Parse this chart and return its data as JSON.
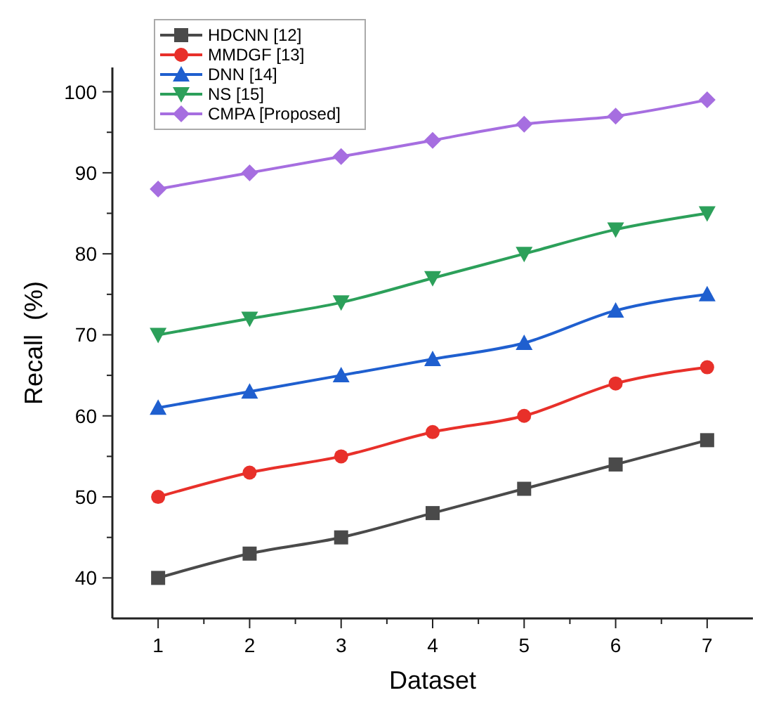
{
  "chart_data": {
    "type": "line",
    "xlabel": "Dataset",
    "ylabel": "Recall  (%)",
    "x": [
      1,
      2,
      3,
      4,
      5,
      6,
      7
    ],
    "series": [
      {
        "name": "HDCNN [12]",
        "color": "#4a4a4a",
        "marker": "square",
        "values": [
          40,
          43,
          45,
          48,
          51,
          54,
          57
        ]
      },
      {
        "name": "MMDGF [13]",
        "color": "#e8302a",
        "marker": "circle",
        "values": [
          50,
          53,
          55,
          58,
          60,
          64,
          66
        ]
      },
      {
        "name": "DNN [14]",
        "color": "#1f5fcf",
        "marker": "triangle",
        "values": [
          61,
          63,
          65,
          67,
          69,
          73,
          75
        ]
      },
      {
        "name": "NS [15]",
        "color": "#2ca05a",
        "marker": "triangle-down",
        "values": [
          70,
          72,
          74,
          77,
          80,
          83,
          85
        ]
      },
      {
        "name": "CMPA [Proposed]",
        "color": "#a66ee0",
        "marker": "diamond",
        "values": [
          88,
          90,
          92,
          94,
          96,
          97,
          99
        ]
      }
    ],
    "xlim": [
      0.5,
      7.5
    ],
    "xticks": [
      1,
      {
        "value": 1.5,
        "label": null
      },
      2,
      {
        "value": 2.5,
        "label": null
      },
      3,
      {
        "value": 3.5,
        "label": null
      },
      4,
      {
        "value": 4.5,
        "label": null
      },
      5,
      {
        "value": 5.5,
        "label": null
      },
      6,
      {
        "value": 6.5,
        "label": null
      },
      7
    ],
    "ylim": [
      35,
      103
    ],
    "yticks": [
      40,
      {
        "value": 45,
        "label": null
      },
      50,
      {
        "value": 55,
        "label": null
      },
      60,
      {
        "value": 65,
        "label": null
      },
      70,
      {
        "value": 75,
        "label": null
      },
      80,
      {
        "value": 85,
        "label": null
      },
      90,
      {
        "value": 95,
        "label": null
      },
      100
    ],
    "grid": false,
    "legend": "top left",
    "line_style": "solid"
  }
}
